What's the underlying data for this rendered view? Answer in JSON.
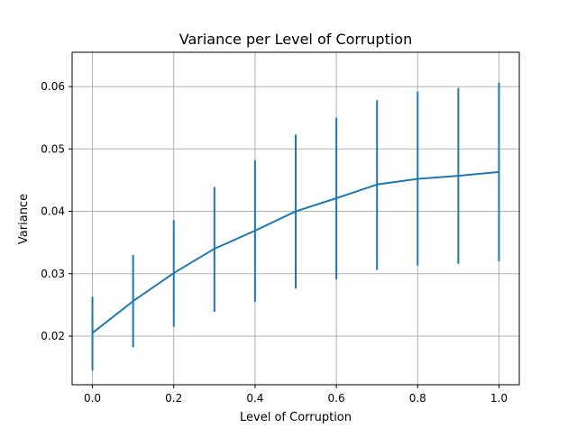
{
  "chart_data": {
    "type": "line",
    "title": "Variance per Level of Corruption",
    "xlabel": "Level of Corruption",
    "ylabel": "Variance",
    "xlim": [
      -0.05,
      1.05
    ],
    "ylim": [
      0.0122,
      0.0655
    ],
    "xticks": [
      0.0,
      0.2,
      0.4,
      0.6,
      0.8,
      1.0
    ],
    "xtick_labels": [
      "0.0",
      "0.2",
      "0.4",
      "0.6",
      "0.8",
      "1.0"
    ],
    "yticks": [
      0.02,
      0.03,
      0.04,
      0.05,
      0.06
    ],
    "ytick_labels": [
      "0.02",
      "0.03",
      "0.04",
      "0.05",
      "0.06"
    ],
    "grid": true,
    "color": "#1f77b4",
    "x": [
      0.0,
      0.1,
      0.2,
      0.3,
      0.4,
      0.5,
      0.6,
      0.7,
      0.8,
      0.9,
      1.0
    ],
    "y": [
      0.0205,
      0.0256,
      0.0301,
      0.034,
      0.0369,
      0.04,
      0.0421,
      0.0443,
      0.0452,
      0.0457,
      0.0463
    ],
    "error_low": [
      0.0145,
      0.0182,
      0.0215,
      0.0239,
      0.0255,
      0.0276,
      0.0291,
      0.0306,
      0.0313,
      0.0316,
      0.032
    ],
    "error_high": [
      0.0263,
      0.033,
      0.0386,
      0.0439,
      0.0482,
      0.0523,
      0.055,
      0.0578,
      0.0592,
      0.0598,
      0.0606
    ]
  }
}
